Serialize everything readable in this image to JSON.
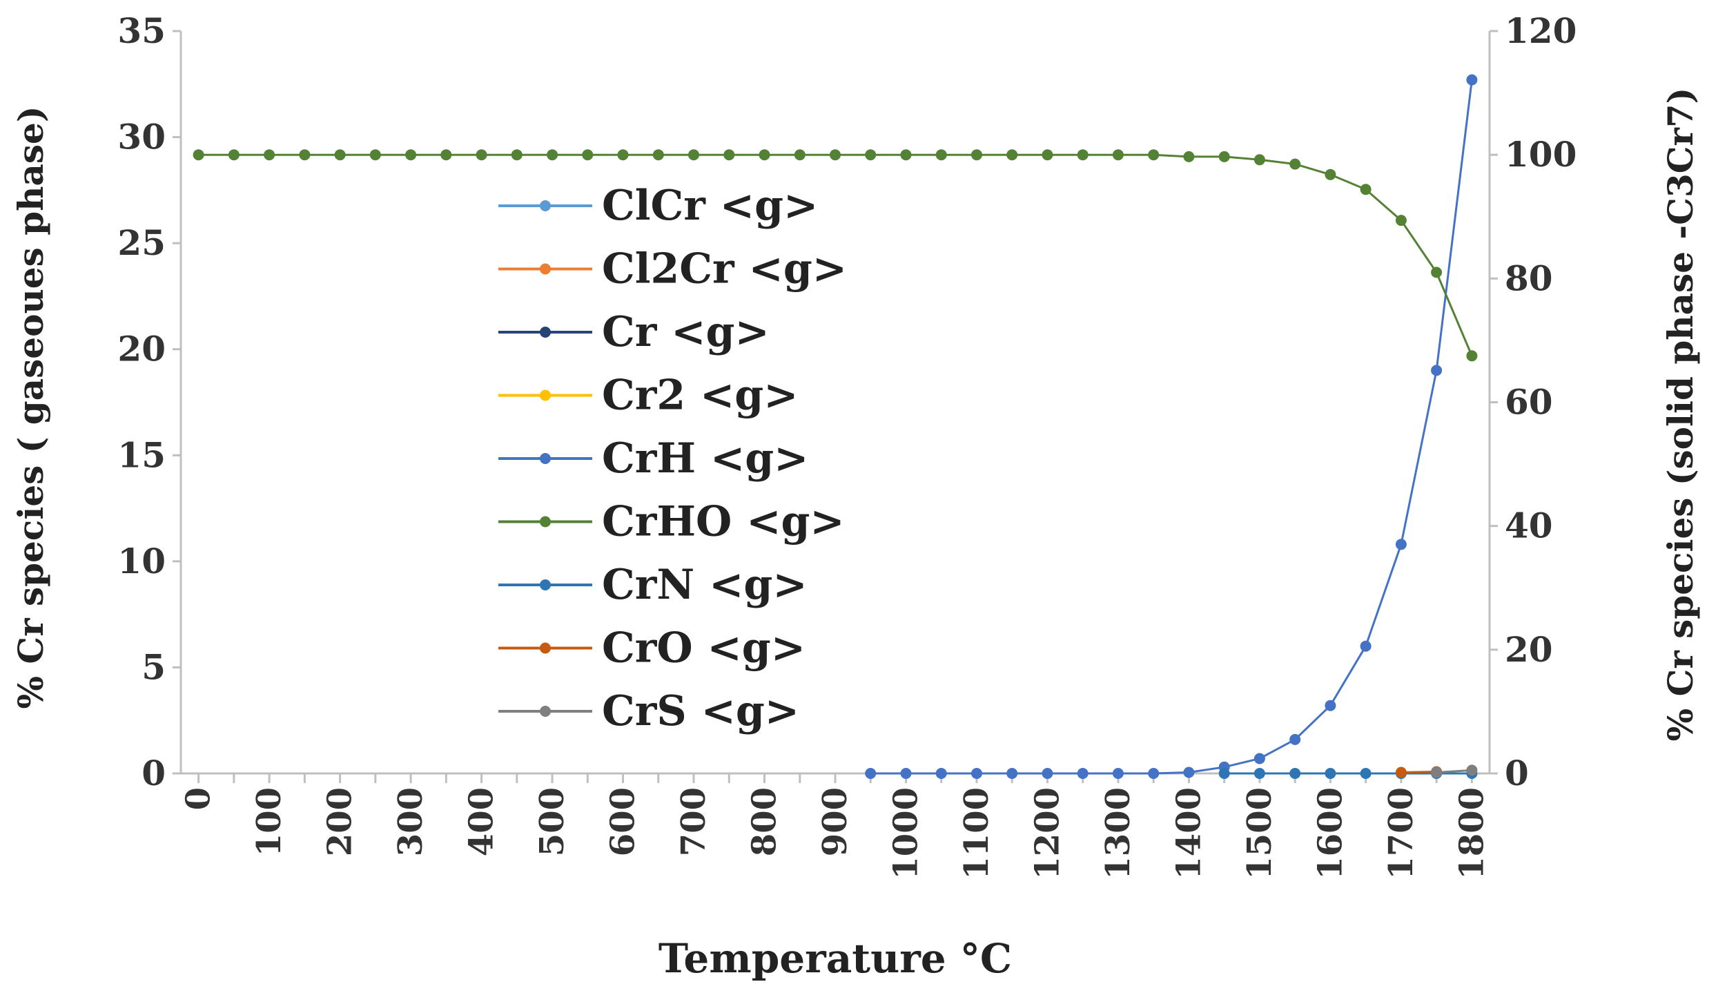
{
  "chart_data": {
    "type": "line",
    "title": "",
    "xlabel": "Temperature °C",
    "ylabel_left": "% Cr species ( gaseoues phase)",
    "ylabel_right": "% Cr species (solid phase -C3Cr7)",
    "ylim_left": [
      0,
      35
    ],
    "ylim_right": [
      0,
      120
    ],
    "yticks_left": [
      0,
      5,
      10,
      15,
      20,
      25,
      30,
      35
    ],
    "yticks_right": [
      0,
      20,
      40,
      60,
      80,
      100,
      120
    ],
    "x_tick_labels": [
      "0",
      "100",
      "200",
      "300",
      "400",
      "500",
      "600",
      "700",
      "800",
      "900",
      "1000",
      "1100",
      "1200",
      "1300",
      "1400",
      "1500",
      "1600",
      "1700",
      "1800"
    ],
    "grid": false,
    "legend_position": "center-left",
    "x": [
      0,
      50,
      100,
      150,
      200,
      250,
      300,
      350,
      400,
      450,
      500,
      550,
      600,
      650,
      700,
      750,
      800,
      850,
      900,
      950,
      1000,
      1050,
      1100,
      1150,
      1200,
      1250,
      1300,
      1350,
      1400,
      1450,
      1500,
      1550,
      1600,
      1650,
      1700,
      1750,
      1800
    ],
    "series": [
      {
        "name": "ClCr <g>",
        "color": "#5b9bd5",
        "axis": "left",
        "x": [],
        "values": []
      },
      {
        "name": "Cl2Cr <g>",
        "color": "#ed7d31",
        "axis": "left",
        "x": [],
        "values": []
      },
      {
        "name": "Cr <g>",
        "color": "#264478",
        "axis": "left",
        "x": [],
        "values": []
      },
      {
        "name": "Cr2 <g>",
        "color": "#ffc000",
        "axis": "left",
        "x": [],
        "values": []
      },
      {
        "name": "CrH <g>",
        "color": "#4472c4",
        "axis": "left",
        "x": [
          950,
          1000,
          1050,
          1100,
          1150,
          1200,
          1250,
          1300,
          1350,
          1400,
          1450,
          1500,
          1550,
          1600,
          1650,
          1700,
          1750,
          1800
        ],
        "values": [
          0,
          0,
          0,
          0,
          0,
          0,
          0,
          0,
          0,
          0.05,
          0.3,
          0.7,
          1.6,
          3.2,
          6.0,
          10.8,
          19.0,
          32.7
        ]
      },
      {
        "name": "CrHO <g>",
        "color": "#548235",
        "axis": "right",
        "x": [
          0,
          50,
          100,
          150,
          200,
          250,
          300,
          350,
          400,
          450,
          500,
          550,
          600,
          650,
          700,
          750,
          800,
          850,
          900,
          950,
          1000,
          1050,
          1100,
          1150,
          1200,
          1250,
          1300,
          1350,
          1400,
          1450,
          1500,
          1550,
          1600,
          1650,
          1700,
          1750,
          1800
        ],
        "values": [
          100,
          100,
          100,
          100,
          100,
          100,
          100,
          100,
          100,
          100,
          100,
          100,
          100,
          100,
          100,
          100,
          100,
          100,
          100,
          100,
          100,
          100,
          100,
          100,
          100,
          100,
          100,
          100,
          99.7,
          99.7,
          99.2,
          98.5,
          96.8,
          94.4,
          89.4,
          81.0,
          67.5
        ]
      },
      {
        "name": "CrN <g>",
        "color": "#2e75b6",
        "axis": "left",
        "x": [
          1450,
          1500,
          1550,
          1600,
          1650,
          1700,
          1750,
          1800
        ],
        "values": [
          0,
          0,
          0,
          0,
          0,
          0,
          0,
          0
        ]
      },
      {
        "name": "CrO <g>",
        "color": "#c55a11",
        "axis": "left",
        "x": [
          1700,
          1750
        ],
        "values": [
          0.05,
          0.08
        ]
      },
      {
        "name": "CrS <g>",
        "color": "#7f7f7f",
        "axis": "left",
        "x": [
          1750,
          1800
        ],
        "values": [
          0.05,
          0.15
        ]
      }
    ]
  }
}
